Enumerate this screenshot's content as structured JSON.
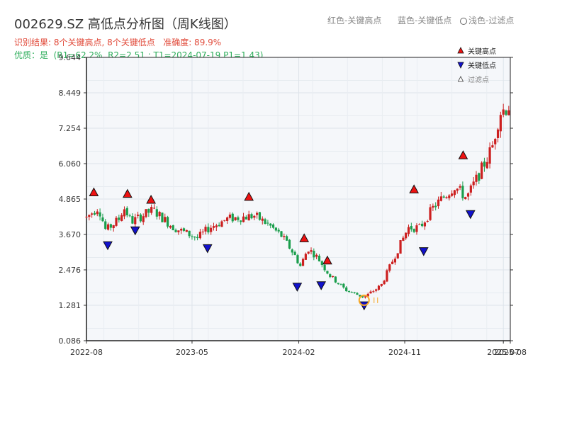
{
  "header": {
    "title": "002629.SZ 高低点分析图（周K线图）",
    "legend_red": "红色-关键高点",
    "legend_blue": "蓝色-关键低点",
    "legend_light": "浅色-过滤点"
  },
  "status": {
    "line1": "识别结果: 8个关键高点, 8个关键低点   准确度: 89.9%",
    "line2": "优质：是  (R1=62.2%, R2=2.51 ; T1=2024-07-19 P1=1.43)"
  },
  "colors": {
    "up": "#cc1f1f",
    "down": "#1a9e4c",
    "high_marker": "#ee1111",
    "low_marker": "#1111cc",
    "filtered": "#f5a623",
    "plot_bg": "#f5f7fa",
    "grid": "#dde3ea"
  },
  "chart_data": {
    "type": "candlestick",
    "title": "002629.SZ 高低点分析图（周K线图）",
    "y_ticks": [
      "0.086",
      "1.281",
      "2.476",
      "3.670",
      "4.865",
      "6.060",
      "7.254",
      "8.449",
      "9.644"
    ],
    "ylim": [
      0.086,
      9.644
    ],
    "x_ticks": [
      "2022-08",
      "2023-05",
      "2024-02",
      "2024-11",
      "2025-07",
      "2025-08"
    ],
    "x_range": [
      "2022-08-01",
      "2025-08-01"
    ],
    "x_tick_dates": [
      "2022-08-01",
      "2023-05-01",
      "2024-02-01",
      "2024-11-01",
      "2025-07-14",
      "2025-08-01"
    ],
    "legend": [
      "关键高点",
      "关键低点",
      "过滤点"
    ],
    "grid": true,
    "legend_placement": "top-right",
    "anchors": [
      [
        "2022-08-01",
        4.25
      ],
      [
        "2022-09-01",
        4.6
      ],
      [
        "2022-09-20",
        3.8
      ],
      [
        "2022-10-25",
        4.2
      ],
      [
        "2022-11-05",
        4.6
      ],
      [
        "2022-11-25",
        4.1
      ],
      [
        "2023-01-20",
        4.5
      ],
      [
        "2023-03-15",
        3.9
      ],
      [
        "2023-05-15",
        3.55
      ],
      [
        "2023-06-15",
        3.9
      ],
      [
        "2023-08-01",
        4.2
      ],
      [
        "2023-10-10",
        4.3
      ],
      [
        "2023-11-15",
        4.0
      ],
      [
        "2023-12-20",
        3.6
      ],
      [
        "2024-01-20",
        3.0
      ],
      [
        "2024-02-05",
        2.6
      ],
      [
        "2024-02-25",
        3.2
      ],
      [
        "2024-03-20",
        2.9
      ],
      [
        "2024-04-20",
        2.3
      ],
      [
        "2024-06-01",
        1.8
      ],
      [
        "2024-07-19",
        1.55
      ],
      [
        "2024-09-01",
        1.95
      ],
      [
        "2024-10-01",
        2.8
      ],
      [
        "2024-11-10",
        3.9
      ],
      [
        "2024-12-10",
        3.9
      ],
      [
        "2025-01-15",
        4.6
      ],
      [
        "2025-03-10",
        5.3
      ],
      [
        "2025-04-10",
        4.9
      ],
      [
        "2025-05-20",
        5.9
      ],
      [
        "2025-06-15",
        6.6
      ],
      [
        "2025-07-05",
        7.8
      ],
      [
        "2025-07-28",
        8.0
      ]
    ],
    "key_highs": [
      {
        "date": "2022-08-20",
        "price": 4.9
      },
      {
        "date": "2022-11-15",
        "price": 4.85
      },
      {
        "date": "2023-01-15",
        "price": 4.65
      },
      {
        "date": "2023-09-25",
        "price": 4.75
      },
      {
        "date": "2024-02-15",
        "price": 3.35
      },
      {
        "date": "2024-04-15",
        "price": 2.6
      },
      {
        "date": "2024-11-25",
        "price": 5.0
      },
      {
        "date": "2025-04-01",
        "price": 6.15
      }
    ],
    "key_lows": [
      {
        "date": "2022-09-25",
        "price": 3.45
      },
      {
        "date": "2022-12-05",
        "price": 3.95
      },
      {
        "date": "2023-06-10",
        "price": 3.35
      },
      {
        "date": "2024-01-28",
        "price": 2.05
      },
      {
        "date": "2024-03-30",
        "price": 2.1
      },
      {
        "date": "2024-07-19",
        "price": 1.42
      },
      {
        "date": "2024-12-20",
        "price": 3.25
      },
      {
        "date": "2025-04-20",
        "price": 4.5
      }
    ],
    "filtered_points": [
      {
        "date": "2024-07-19",
        "price": 1.45
      }
    ]
  }
}
